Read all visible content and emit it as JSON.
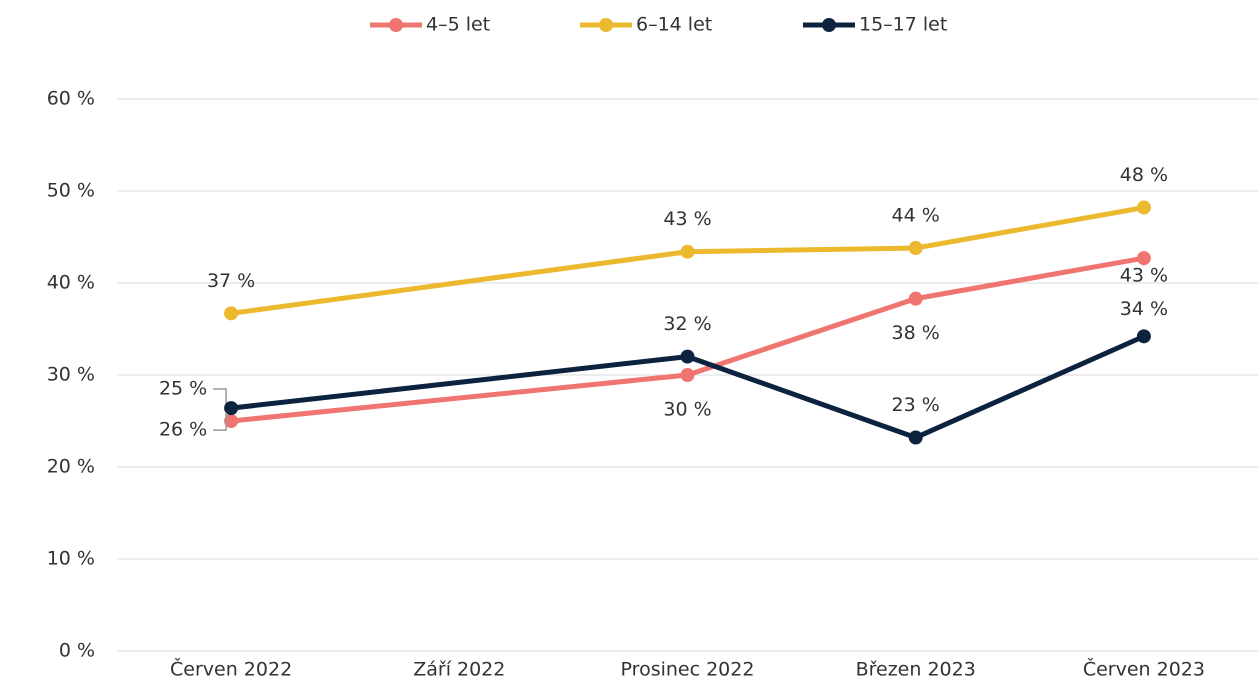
{
  "chart_data": {
    "type": "line",
    "categories": [
      "Červen 2022",
      "Září 2022",
      "Prosinec 2022",
      "Březen 2023",
      "Červen 2023"
    ],
    "series": [
      {
        "name": "4–5 let",
        "color": "#f07470",
        "values": [
          25.0,
          null,
          30.0,
          38.3,
          42.7
        ],
        "value_labels": [
          "25 %",
          null,
          "30 %",
          "38 %",
          "43 %"
        ]
      },
      {
        "name": "6–14 let",
        "color": "#ebb82e",
        "values": [
          36.7,
          null,
          43.4,
          43.8,
          48.2
        ],
        "value_labels": [
          "37 %",
          null,
          "43 %",
          "44 %",
          "48 %"
        ]
      },
      {
        "name": "15–17 let",
        "color": "#0c2340",
        "values": [
          26.4,
          null,
          32.0,
          23.2,
          34.2
        ],
        "value_labels": [
          "26 %",
          null,
          "32 %",
          "23 %",
          "34 %"
        ]
      }
    ],
    "ylim": [
      0,
      60
    ],
    "yticks": [
      {
        "value": 0,
        "label": "0 %"
      },
      {
        "value": 10,
        "label": "10 %"
      },
      {
        "value": 20,
        "label": "20 %"
      },
      {
        "value": 30,
        "label": "30 %"
      },
      {
        "value": 40,
        "label": "40 %"
      },
      {
        "value": 50,
        "label": "50 %"
      },
      {
        "value": 60,
        "label": "60 %"
      }
    ],
    "grid": true,
    "legend": "top"
  }
}
